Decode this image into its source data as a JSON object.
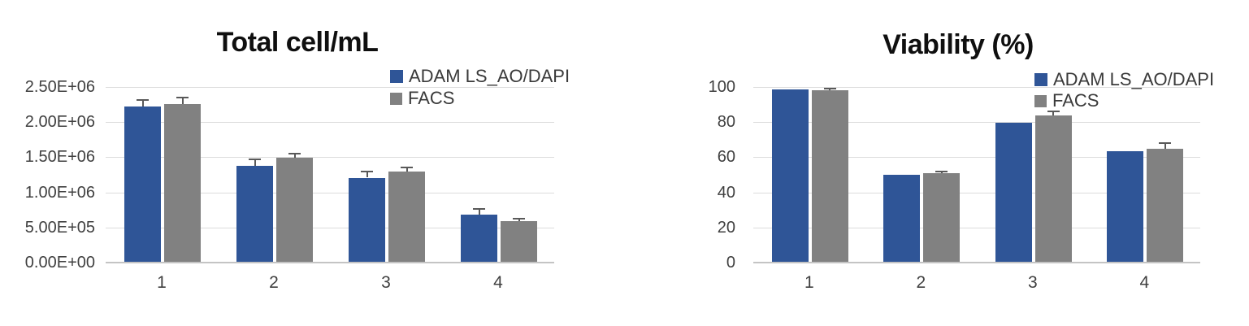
{
  "accent_colors": {
    "series_blue": "#2F5597",
    "series_gray": "#818181",
    "error_bar": "#595959",
    "gridline": "#dcdcdc",
    "axis_line": "#c4c4c4",
    "axis_text": "#404040",
    "title_text": "#0f0f0f",
    "background": "#ffffff"
  },
  "chart_data": [
    {
      "type": "bar",
      "title": "Total cell/mL",
      "categories": [
        "1",
        "2",
        "3",
        "4"
      ],
      "series": [
        {
          "name": "ADAM LS_AO/DAPI",
          "color": "#2F5597",
          "values": [
            2220000,
            1380000,
            1210000,
            680000
          ],
          "errors": [
            110000,
            100000,
            100000,
            100000
          ]
        },
        {
          "name": "FACS",
          "color": "#818181",
          "values": [
            2260000,
            1490000,
            1300000,
            590000
          ],
          "errors": [
            100000,
            70000,
            70000,
            50000
          ]
        }
      ],
      "xlabel": "",
      "ylabel": "",
      "ylim": [
        0,
        2500000
      ],
      "ytick_labels": [
        "0.00E+00",
        "5.00E+05",
        "1.00E+06",
        "1.50E+06",
        "2.00E+06",
        "2.50E+06"
      ],
      "grid": true,
      "legend_position": "top-right"
    },
    {
      "type": "bar",
      "title": "Viability (%)",
      "categories": [
        "1",
        "2",
        "3",
        "4"
      ],
      "series": [
        {
          "name": "ADAM LS_AO/DAPI",
          "color": "#2F5597",
          "values": [
            98.7,
            50.0,
            79.5,
            63.3
          ],
          "errors": [
            0,
            0,
            0,
            0
          ]
        },
        {
          "name": "FACS",
          "color": "#818181",
          "values": [
            98.3,
            50.8,
            84.0,
            64.8
          ],
          "errors": [
            1.1,
            1.4,
            2.5,
            3.7
          ]
        }
      ],
      "xlabel": "",
      "ylabel": "",
      "ylim": [
        0,
        100
      ],
      "ytick_labels": [
        "0",
        "20",
        "40",
        "60",
        "80",
        "100"
      ],
      "grid": true,
      "legend_position": "top-right"
    }
  ]
}
